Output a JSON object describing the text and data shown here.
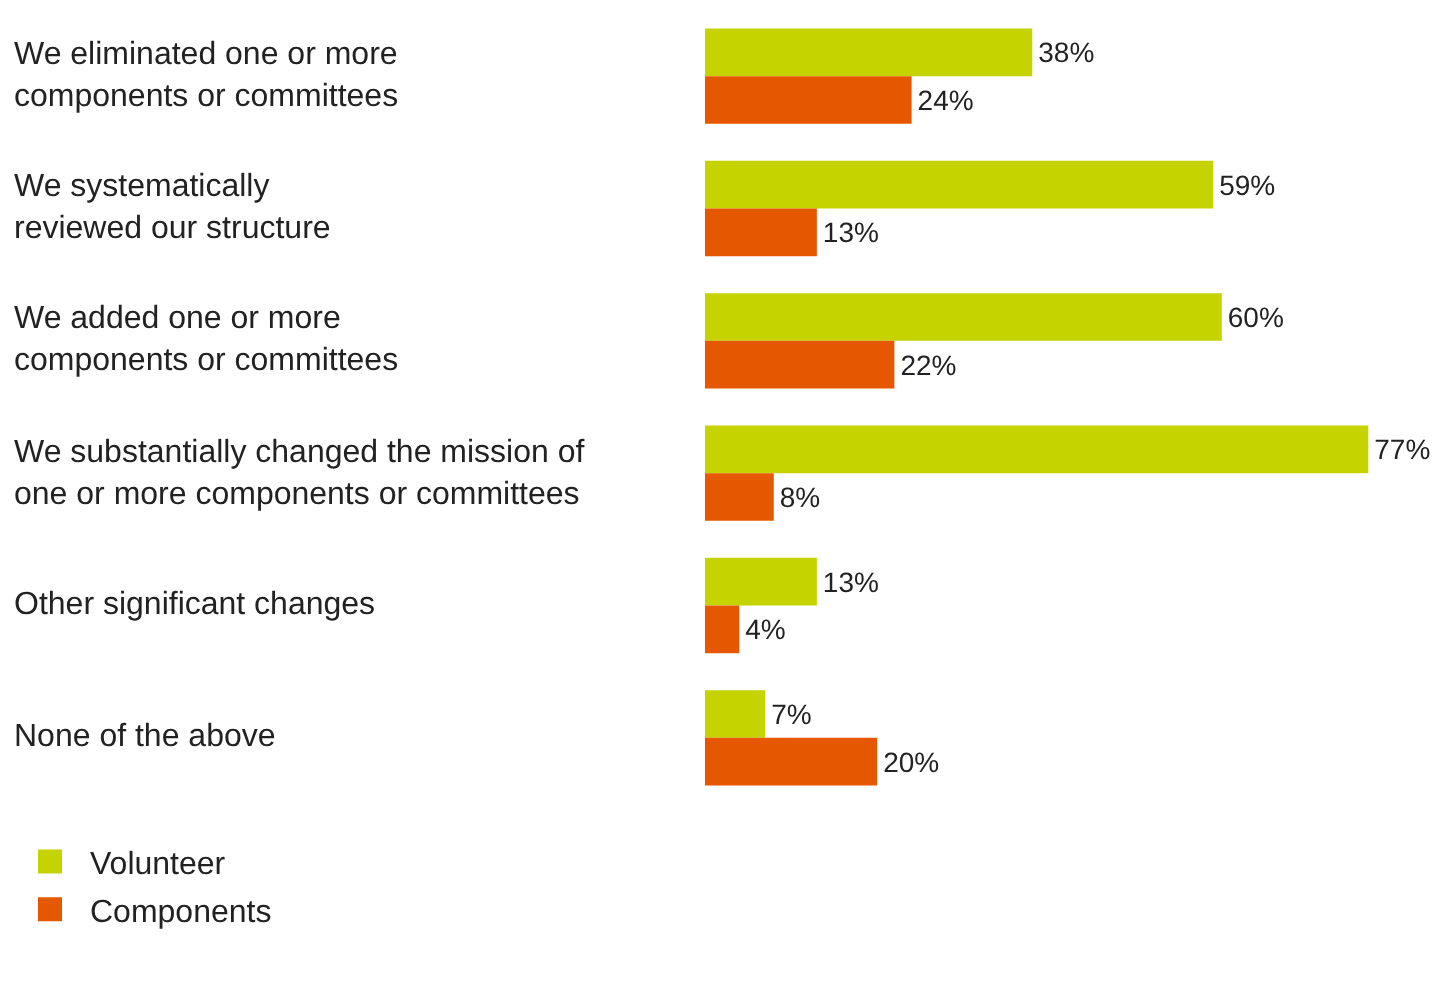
{
  "chart_data": {
    "type": "bar",
    "orientation": "horizontal",
    "legend": "bottom left",
    "categories": [
      "We eliminated one or more\ncomponents or committees",
      "We systematically\nreviewed our structure",
      "We added one or more\ncomponents or committees",
      "We substantially changed the mission of\none or more components or committees",
      "Other significant changes",
      "None of the above"
    ],
    "series": [
      {
        "name": "Volunteer",
        "color": "#c5d400",
        "values": [
          38,
          59,
          60,
          77,
          13,
          7
        ],
        "value_labels": [
          "38%",
          "59%",
          "60%",
          "77%",
          "13%",
          "7%"
        ]
      },
      {
        "name": "Components",
        "color": "#e55800",
        "values": [
          24,
          13,
          22,
          8,
          4,
          20
        ],
        "value_labels": [
          "24%",
          "13%",
          "22%",
          "8%",
          "4%",
          "20%"
        ]
      }
    ]
  }
}
